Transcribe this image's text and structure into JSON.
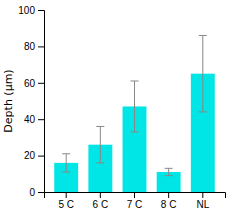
{
  "chart_data": {
    "type": "bar",
    "categories": [
      "5 C",
      "6 C",
      "7 C",
      "8 C",
      "NL"
    ],
    "values": [
      16,
      26,
      47,
      11,
      65
    ],
    "errors": [
      5,
      10,
      14,
      2,
      21
    ],
    "color": "#00E5E5",
    "ylabel": "Depth (μm)",
    "ylim": [
      0,
      100
    ],
    "yticks": [
      0,
      20,
      40,
      60,
      80,
      100
    ],
    "grid": false
  }
}
